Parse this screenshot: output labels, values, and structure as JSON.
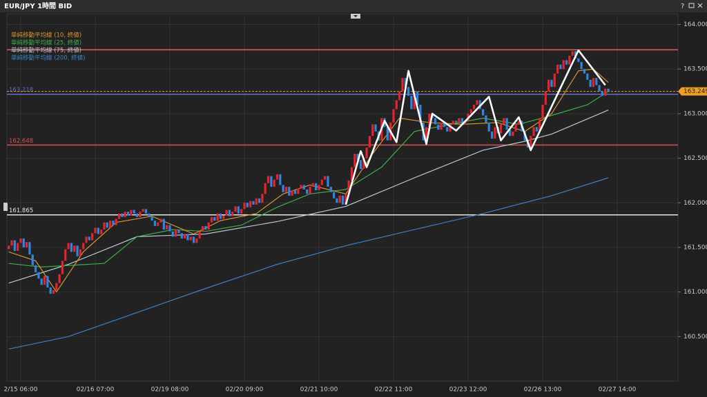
{
  "window": {
    "title": "EUR/JPY 1時間 BID",
    "help": "?"
  },
  "chart_data": {
    "type": "candlestick",
    "categories": [
      null,
      null,
      null,
      null,
      "2/15 06:00",
      null,
      null,
      null,
      null,
      null,
      null,
      null,
      null,
      null,
      null,
      null,
      null,
      null,
      null,
      null,
      null,
      null,
      null,
      null,
      null,
      null,
      null,
      null,
      null,
      "02/16 07:00",
      null,
      null,
      null,
      null,
      null,
      null,
      null,
      null,
      null,
      null,
      null,
      null,
      null,
      null,
      null,
      null,
      null,
      null,
      null,
      null,
      null,
      null,
      null,
      null,
      "02/19 08:00",
      null,
      null,
      null,
      null,
      null,
      null,
      null,
      null,
      null,
      null,
      null,
      null,
      null,
      null,
      null,
      null,
      null,
      null,
      null,
      null,
      null,
      null,
      null,
      null,
      "02/20 09:00",
      null,
      null,
      null,
      null,
      null,
      null,
      null,
      null,
      null,
      null,
      null,
      null,
      null,
      null,
      null,
      null,
      null,
      null,
      null,
      null,
      null,
      null,
      null,
      null,
      "02/21 10:00",
      null,
      null,
      null,
      null,
      null,
      null,
      null,
      null,
      null,
      null,
      null,
      null,
      null,
      null,
      null,
      null,
      null,
      null,
      null,
      null,
      null,
      null,
      null,
      null,
      "02/22 11:00",
      null,
      null,
      null,
      null,
      null,
      null,
      null,
      null,
      null,
      null,
      null,
      null,
      null,
      null,
      null,
      null,
      null,
      null,
      null,
      null,
      null,
      null,
      null,
      null,
      "02/23 12:00",
      null,
      null,
      null,
      null,
      null,
      null,
      null,
      null,
      null,
      null,
      null,
      null,
      null,
      null,
      null,
      null,
      null,
      null,
      null,
      null,
      null,
      null,
      null,
      null,
      "02/26 13:00",
      null,
      null,
      null,
      null,
      null,
      null,
      null,
      null,
      null,
      null,
      null,
      null,
      null,
      null,
      null,
      null,
      null,
      null,
      null,
      null,
      null,
      null,
      null,
      null,
      "02/27 14:00"
    ],
    "candles": {
      "up_color": "#e8232c",
      "down_color": "#2f86e0",
      "open": [
        161.48,
        161.52,
        161.58,
        161.46,
        161.55,
        161.6,
        161.5,
        161.56,
        161.42,
        161.3,
        161.22,
        161.15,
        161.08,
        161.18,
        161.05,
        160.98,
        161.02,
        161.1,
        161.2,
        161.35,
        161.48,
        161.55,
        161.45,
        161.52,
        161.4,
        161.48,
        161.55,
        161.62,
        161.58,
        161.66,
        161.72,
        161.65,
        161.7,
        161.78,
        161.72,
        161.8,
        161.75,
        161.82,
        161.88,
        161.84,
        161.9,
        161.86,
        161.92,
        161.88,
        161.84,
        161.9,
        161.93,
        161.88,
        161.85,
        161.8,
        161.74,
        161.78,
        161.82,
        161.7,
        161.75,
        161.68,
        161.62,
        161.7,
        161.66,
        161.6,
        161.65,
        161.58,
        161.62,
        161.55,
        161.6,
        161.68,
        161.74,
        161.7,
        161.78,
        161.84,
        161.8,
        161.88,
        161.82,
        161.86,
        161.92,
        161.85,
        161.9,
        161.96,
        161.88,
        161.93,
        162.0,
        161.95,
        162.02,
        161.98,
        162.05,
        162.0,
        162.1,
        162.22,
        162.3,
        162.18,
        162.26,
        162.32,
        162.2,
        162.12,
        162.18,
        162.08,
        162.14,
        162.1,
        162.16,
        162.2,
        162.15,
        162.1,
        162.18,
        162.22,
        162.14,
        162.2,
        162.26,
        162.3,
        162.18,
        162.12,
        162.05,
        162.0,
        162.08,
        161.98,
        162.1,
        162.25,
        162.4,
        162.55,
        162.48,
        162.38,
        162.5,
        162.62,
        162.75,
        162.88,
        162.8,
        162.7,
        162.95,
        162.85,
        162.7,
        162.9,
        163.05,
        163.15,
        163.25,
        163.4,
        163.3,
        163.2,
        163.05,
        163.25,
        163.1,
        162.9,
        162.7,
        162.85,
        163.0,
        162.95,
        162.88,
        162.82,
        162.9,
        162.85,
        162.8,
        162.88,
        162.92,
        162.9,
        162.95,
        162.88,
        162.92,
        163.0,
        163.05,
        163.1,
        163.15,
        163.05,
        162.98,
        162.9,
        162.8,
        162.72,
        162.85,
        162.78,
        162.88,
        162.95,
        162.82,
        162.75,
        162.8,
        162.88,
        162.92,
        162.8,
        162.7,
        162.62,
        162.75,
        162.85,
        162.8,
        162.95,
        163.1,
        163.25,
        163.38,
        163.3,
        163.45,
        163.55,
        163.5,
        163.6,
        163.55,
        163.65,
        163.7,
        163.62,
        163.58,
        163.5,
        163.45,
        163.38,
        163.3,
        163.4,
        163.32,
        163.25,
        163.2,
        163.28,
        null,
        null,
        null
      ],
      "close": [
        161.52,
        161.58,
        161.46,
        161.55,
        161.6,
        161.5,
        161.56,
        161.42,
        161.3,
        161.22,
        161.15,
        161.08,
        161.18,
        161.05,
        160.98,
        161.02,
        161.1,
        161.2,
        161.35,
        161.48,
        161.55,
        161.45,
        161.52,
        161.4,
        161.48,
        161.55,
        161.62,
        161.58,
        161.66,
        161.72,
        161.65,
        161.7,
        161.78,
        161.72,
        161.8,
        161.75,
        161.82,
        161.88,
        161.84,
        161.9,
        161.86,
        161.92,
        161.88,
        161.84,
        161.9,
        161.93,
        161.88,
        161.85,
        161.8,
        161.74,
        161.78,
        161.82,
        161.7,
        161.75,
        161.68,
        161.62,
        161.7,
        161.66,
        161.6,
        161.65,
        161.58,
        161.62,
        161.55,
        161.6,
        161.68,
        161.74,
        161.7,
        161.78,
        161.84,
        161.8,
        161.88,
        161.82,
        161.86,
        161.92,
        161.85,
        161.9,
        161.96,
        161.88,
        161.93,
        162.0,
        161.95,
        162.02,
        161.98,
        162.05,
        162.0,
        162.1,
        162.22,
        162.3,
        162.18,
        162.26,
        162.32,
        162.2,
        162.12,
        162.18,
        162.08,
        162.14,
        162.1,
        162.16,
        162.2,
        162.15,
        162.1,
        162.18,
        162.22,
        162.14,
        162.2,
        162.26,
        162.3,
        162.18,
        162.12,
        162.05,
        162.0,
        162.08,
        161.98,
        162.1,
        162.25,
        162.4,
        162.55,
        162.48,
        162.38,
        162.5,
        162.62,
        162.75,
        162.88,
        162.8,
        162.7,
        162.95,
        162.85,
        162.7,
        162.9,
        163.05,
        163.15,
        163.25,
        163.4,
        163.3,
        163.2,
        163.05,
        163.25,
        163.1,
        162.9,
        162.7,
        162.85,
        163.0,
        162.95,
        162.88,
        162.82,
        162.9,
        162.85,
        162.8,
        162.88,
        162.92,
        162.9,
        162.95,
        162.88,
        162.92,
        163.0,
        163.05,
        163.1,
        163.15,
        163.05,
        162.98,
        162.9,
        162.8,
        162.72,
        162.85,
        162.78,
        162.88,
        162.95,
        162.82,
        162.75,
        162.8,
        162.88,
        162.92,
        162.8,
        162.7,
        162.62,
        162.75,
        162.85,
        162.8,
        162.95,
        163.1,
        163.25,
        163.38,
        163.3,
        163.45,
        163.55,
        163.5,
        163.6,
        163.55,
        163.65,
        163.7,
        163.62,
        163.58,
        163.5,
        163.45,
        163.38,
        163.3,
        163.4,
        163.32,
        163.25,
        163.2,
        163.28,
        163.25,
        null,
        null,
        null
      ]
    },
    "series": [
      {
        "name": "単純移動平均線 (10, 終値)",
        "color": "#d8962c",
        "x": [
          0,
          9,
          16,
          25,
          36,
          48,
          62,
          71,
          83,
          92,
          101,
          113,
          122,
          131,
          141,
          152,
          164,
          173,
          182,
          191,
          196,
          201
        ],
        "values": [
          161.45,
          161.35,
          161.0,
          161.45,
          161.78,
          161.85,
          161.65,
          161.8,
          161.88,
          162.1,
          162.2,
          162.1,
          162.55,
          162.95,
          162.9,
          162.88,
          162.9,
          162.8,
          163.0,
          163.48,
          163.5,
          163.35
        ]
      },
      {
        "name": "単純移動平均線 (25, 終値)",
        "color": "#3fae4a",
        "x": [
          0,
          11,
          32,
          43,
          55,
          66,
          78,
          90,
          101,
          113,
          125,
          136,
          148,
          159,
          171,
          182,
          194,
          201
        ],
        "values": [
          161.32,
          161.28,
          161.32,
          161.62,
          161.7,
          161.68,
          161.75,
          161.95,
          162.1,
          162.15,
          162.4,
          162.8,
          162.88,
          162.95,
          162.88,
          162.98,
          163.1,
          163.25
        ]
      },
      {
        "name": "単純移動平均線 (75, 終値)",
        "color": "#b8c8dc",
        "x": [
          0,
          20,
          43,
          66,
          90,
          113,
          136,
          159,
          173,
          182,
          201
        ],
        "values": [
          161.1,
          161.31,
          161.62,
          161.65,
          161.79,
          161.96,
          162.28,
          162.59,
          162.69,
          162.77,
          163.04
        ]
      },
      {
        "name": "単純移動平均線 (200, 終値)",
        "color": "#3a82c8",
        "x": [
          0,
          20,
          43,
          66,
          90,
          113,
          136,
          159,
          182,
          201
        ],
        "values": [
          160.36,
          160.5,
          160.77,
          161.04,
          161.31,
          161.52,
          161.7,
          161.88,
          162.08,
          162.28
        ]
      }
    ],
    "zigzag": {
      "color": "#ffffff",
      "x": [
        113,
        118,
        120,
        126,
        130,
        134,
        140,
        142,
        150,
        161,
        165,
        171,
        175,
        191,
        200
      ],
      "values": [
        161.98,
        162.58,
        162.4,
        162.92,
        162.68,
        163.48,
        162.66,
        163.0,
        162.81,
        163.19,
        162.7,
        162.96,
        162.59,
        163.71,
        163.32
      ]
    },
    "levels": [
      {
        "value": 163.716,
        "color": "#e85a5a",
        "show_label": false
      },
      {
        "value": 163.218,
        "color": "#6a6ad8",
        "show_label": true
      },
      {
        "value": 162.648,
        "color": "#d85050",
        "show_label": true
      },
      {
        "value": 161.865,
        "color": "#e8e8e8",
        "show_label": true
      }
    ],
    "last_price": {
      "value": 163.249,
      "color": "#f0a020"
    },
    "ylim": [
      160.0,
      164.12
    ],
    "yticks": [
      {
        "value": 160.5,
        "label": "160.500"
      },
      {
        "value": 161,
        "label": "161.000"
      },
      {
        "value": 161.5,
        "label": "161.500"
      },
      {
        "value": 162,
        "label": "162.000"
      },
      {
        "value": 162.5,
        "label": "162.500"
      },
      {
        "value": 163,
        "label": "163.000"
      },
      {
        "value": 163.5,
        "label": "163.500"
      },
      {
        "value": 164,
        "label": "164.000"
      }
    ],
    "grid": true
  }
}
